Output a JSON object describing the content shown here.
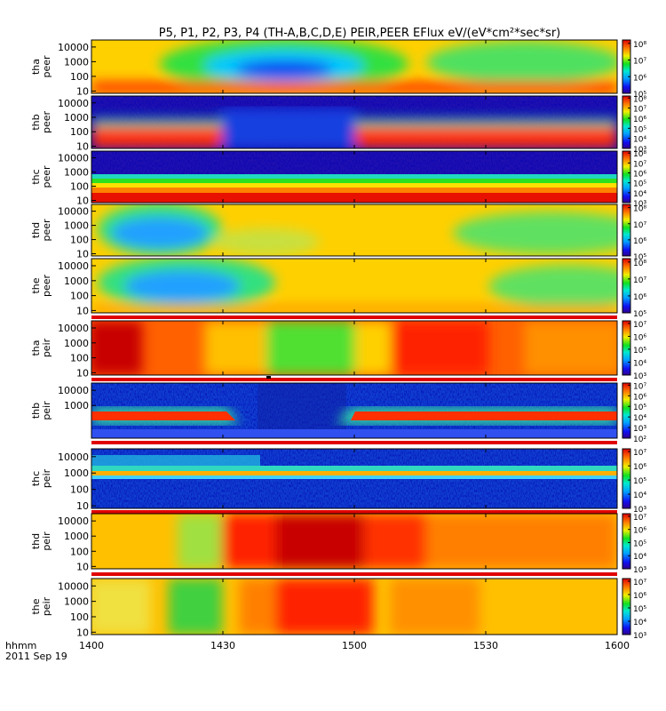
{
  "chart_data": {
    "type": "heatmap",
    "title": "P5, P1, P2, P3, P4 (TH-A,B,C,D,E) PEIR,PEER EFlux eV/(eV*cm²*sec*sr)",
    "time_label": "hhmm",
    "date_label": "2011 Sep 19",
    "x_ticks": [
      "1400",
      "1430",
      "1500",
      "1530",
      "1600"
    ],
    "colormap": "rainbow (purple-blue-cyan-green-yellow-red)",
    "yscale": "log",
    "panels": [
      {
        "ylabel": [
          "tha",
          "peer"
        ],
        "yticks": [
          "10",
          "100",
          "1000",
          "10000"
        ],
        "cb_ticks": [
          "10⁵",
          "10⁶",
          "10⁷",
          "10⁸"
        ],
        "cb_range_log": [
          5,
          8.2
        ]
      },
      {
        "ylabel": [
          "thb",
          "peer"
        ],
        "yticks": [
          "10",
          "100",
          "1000",
          "10000"
        ],
        "cb_ticks": [
          "10³",
          "10⁴",
          "10⁵",
          "10⁶",
          "10⁷",
          "10⁸"
        ],
        "cb_range_log": [
          3,
          8.2
        ]
      },
      {
        "ylabel": [
          "thc",
          "peer"
        ],
        "yticks": [
          "10",
          "100",
          "1000",
          "10000"
        ],
        "cb_ticks": [
          "10³",
          "10⁴",
          "10⁵",
          "10⁶",
          "10⁷",
          "10⁸"
        ],
        "cb_range_log": [
          3,
          8.2
        ]
      },
      {
        "ylabel": [
          "thd",
          "peer"
        ],
        "yticks": [
          "10",
          "100",
          "1000",
          "10000"
        ],
        "cb_ticks": [
          "10⁵",
          "10⁶",
          "10⁷",
          "10⁸"
        ],
        "cb_range_log": [
          5,
          8.2
        ]
      },
      {
        "ylabel": [
          "the",
          "peer"
        ],
        "yticks": [
          "10",
          "100",
          "1000",
          "10000"
        ],
        "cb_ticks": [
          "10⁵",
          "10⁶",
          "10⁷",
          "10⁸"
        ],
        "cb_range_log": [
          5,
          8.2
        ]
      },
      {
        "ylabel": [
          "tha",
          "peir"
        ],
        "yticks": [
          "10",
          "100",
          "1000",
          "10000"
        ],
        "cb_ticks": [
          "10³",
          "10⁴",
          "10⁵",
          "10⁶",
          "10⁷"
        ],
        "cb_range_log": [
          3,
          7.2
        ]
      },
      {
        "ylabel": [
          "thb",
          "peir"
        ],
        "yticks": [
          "1000",
          "10000"
        ],
        "cb_ticks": [
          "10²",
          "10³",
          "10⁴",
          "10⁵",
          "10⁶",
          "10⁷"
        ],
        "cb_range_log": [
          2,
          7.2
        ]
      },
      {
        "ylabel": [
          "thc",
          "peir"
        ],
        "yticks": [
          "10",
          "100",
          "1000",
          "10000"
        ],
        "cb_ticks": [
          "10³",
          "10⁴",
          "10⁵",
          "10⁶",
          "10⁷"
        ],
        "cb_range_log": [
          3,
          7.2
        ]
      },
      {
        "ylabel": [
          "thd",
          "peir"
        ],
        "yticks": [
          "10",
          "100",
          "1000",
          "10000"
        ],
        "cb_ticks": [
          "10³",
          "10⁴",
          "10⁵",
          "10⁶",
          "10⁷"
        ],
        "cb_range_log": [
          3,
          7.2
        ]
      },
      {
        "ylabel": [
          "the",
          "peir"
        ],
        "yticks": [
          "10",
          "100",
          "1000",
          "10000"
        ],
        "cb_ticks": [
          "10³",
          "10⁴",
          "10⁵",
          "10⁶",
          "10⁷"
        ],
        "cb_range_log": [
          3,
          7.2
        ]
      }
    ]
  }
}
